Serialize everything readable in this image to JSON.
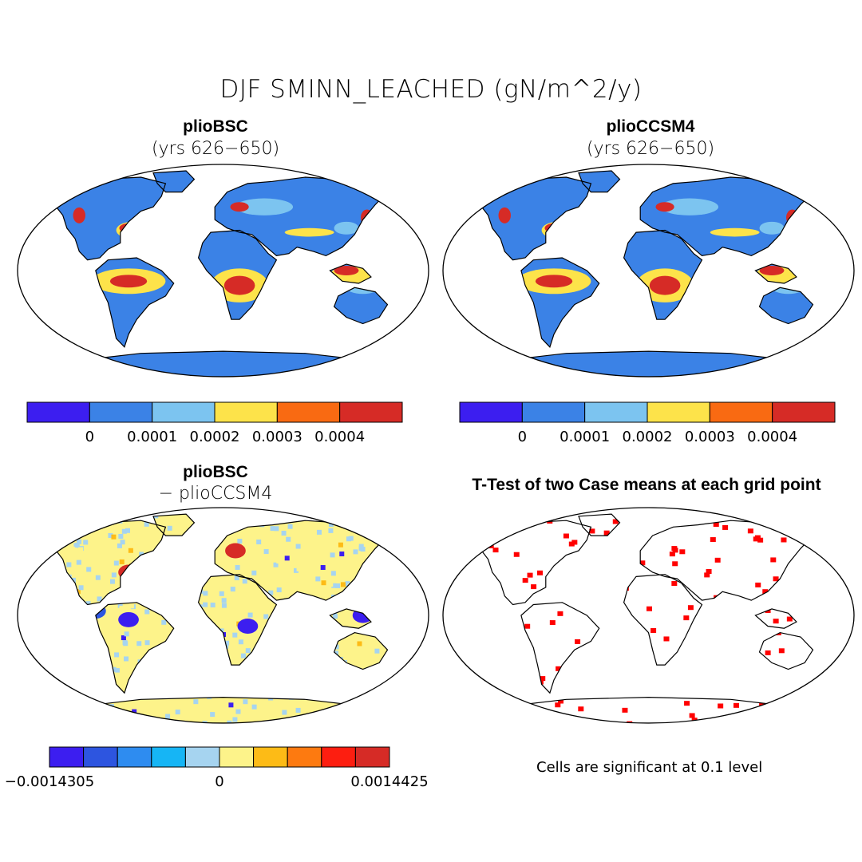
{
  "figure": {
    "title": "DJF SMINN_LEACHED (gN/m^2/y)",
    "note": "Cells are significant at 0.1 level"
  },
  "panels": [
    {
      "id": "case1",
      "name": "plioBSC",
      "subtitle": "(yrs 626−650)",
      "colorbar": {
        "colors": [
          "#3c1ef0",
          "#3b82e6",
          "#7cc4f0",
          "#fde34a",
          "#f96a12",
          "#d62b26"
        ],
        "tick_labels": [
          "0",
          "0.0001",
          "0.0002",
          "0.0003",
          "0.0004"
        ]
      }
    },
    {
      "id": "case2",
      "name": "plioCCSM4",
      "subtitle": "(yrs 626−650)",
      "colorbar": {
        "colors": [
          "#3c1ef0",
          "#3b82e6",
          "#7cc4f0",
          "#fde34a",
          "#f96a12",
          "#d62b26"
        ],
        "tick_labels": [
          "0",
          "0.0001",
          "0.0002",
          "0.0003",
          "0.0004"
        ]
      }
    },
    {
      "id": "diff",
      "name": "plioBSC",
      "subtitle": "− plioCCSM4",
      "colorbar": {
        "colors": [
          "#3c1ef0",
          "#2d55e0",
          "#2e8cf0",
          "#16b5f5",
          "#a6d4f0",
          "#fdf38a",
          "#fdbb16",
          "#fd7a10",
          "#fd1e10",
          "#d62b26"
        ],
        "tick_labels": [
          "−0.0014305",
          "0",
          "0.0014425"
        ]
      }
    },
    {
      "id": "ttest",
      "name": "T-Test of two Case means at each grid point",
      "significance_color": "#ff0000"
    }
  ],
  "colors": {
    "ocean": "#ffffff",
    "land_base": "#3b82e6",
    "land_diff": "#fdf38a",
    "coast": "#000000"
  }
}
